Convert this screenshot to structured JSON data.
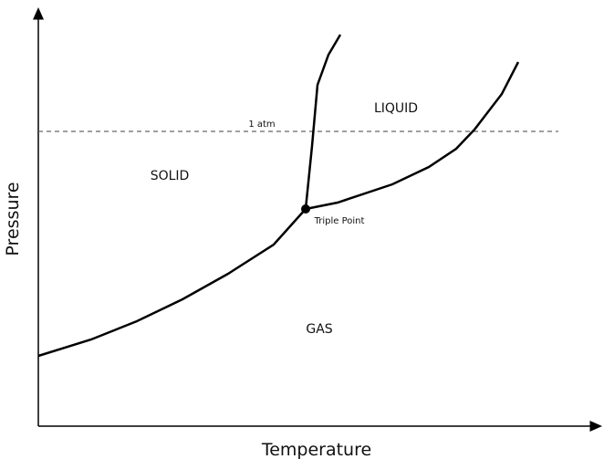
{
  "axes": {
    "y_label": "Pressure",
    "x_label": "Temperature"
  },
  "regions": [
    {
      "label": "SOLID"
    },
    {
      "label": "LIQUID"
    },
    {
      "label": "GAS"
    }
  ],
  "reference_line": {
    "label": "1 atm"
  },
  "point": {
    "label": "Triple Point"
  }
}
